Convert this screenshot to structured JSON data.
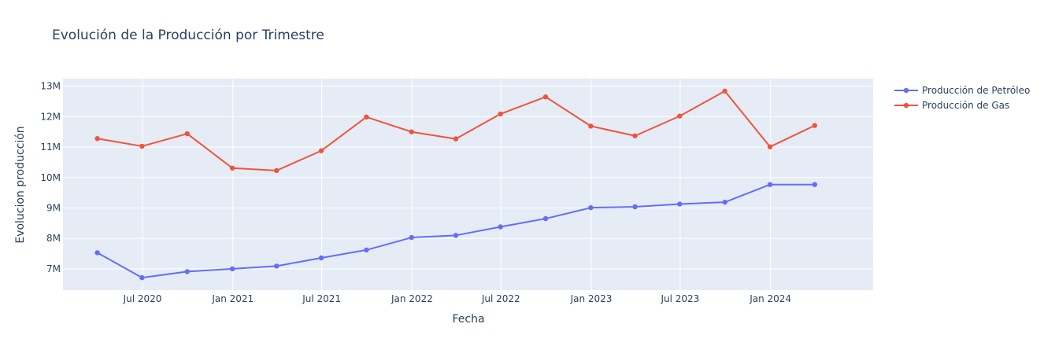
{
  "chart_data": {
    "type": "line",
    "title": "Evolución de la Producción por Trimestre",
    "xlabel": "Fecha",
    "ylabel": "Evolucion producción",
    "x": [
      "2020-03-31",
      "2020-06-30",
      "2020-09-30",
      "2020-12-31",
      "2021-03-31",
      "2021-06-30",
      "2021-09-30",
      "2021-12-31",
      "2022-03-31",
      "2022-06-30",
      "2022-09-30",
      "2022-12-31",
      "2023-03-31",
      "2023-06-30",
      "2023-09-30",
      "2023-12-31",
      "2024-03-31"
    ],
    "xlim": [
      "2020-01-21",
      "2024-07-28"
    ],
    "xticks": [
      {
        "date": "2020-07-01",
        "label": "Jul 2020"
      },
      {
        "date": "2021-01-01",
        "label": "Jan 2021"
      },
      {
        "date": "2021-07-01",
        "label": "Jul 2021"
      },
      {
        "date": "2022-01-01",
        "label": "Jan 2022"
      },
      {
        "date": "2022-07-01",
        "label": "Jul 2022"
      },
      {
        "date": "2023-01-01",
        "label": "Jan 2023"
      },
      {
        "date": "2023-07-01",
        "label": "Jul 2023"
      },
      {
        "date": "2024-01-01",
        "label": "Jan 2024"
      }
    ],
    "ylim": [
      6300000,
      13250000
    ],
    "yticks": [
      {
        "value": 7000000,
        "label": "7M"
      },
      {
        "value": 8000000,
        "label": "8M"
      },
      {
        "value": 9000000,
        "label": "9M"
      },
      {
        "value": 10000000,
        "label": "10M"
      },
      {
        "value": 11000000,
        "label": "11M"
      },
      {
        "value": 12000000,
        "label": "12M"
      },
      {
        "value": 13000000,
        "label": "13M"
      }
    ],
    "grid": true,
    "legend_position": "top-right",
    "series": [
      {
        "name": "Producción de Petróleo",
        "color": "#636efa",
        "values": [
          7530000,
          6710000,
          6910000,
          7000000,
          7090000,
          7360000,
          7620000,
          8030000,
          8100000,
          8380000,
          8650000,
          9010000,
          9040000,
          9130000,
          9190000,
          9770000,
          9770000
        ]
      },
      {
        "name": "Producción de Gas",
        "color": "#ef553b",
        "values": [
          11280000,
          11030000,
          11440000,
          10310000,
          10230000,
          10880000,
          11990000,
          11500000,
          11270000,
          12090000,
          12650000,
          11690000,
          11370000,
          12020000,
          12840000,
          11010000,
          11710000
        ]
      }
    ]
  }
}
